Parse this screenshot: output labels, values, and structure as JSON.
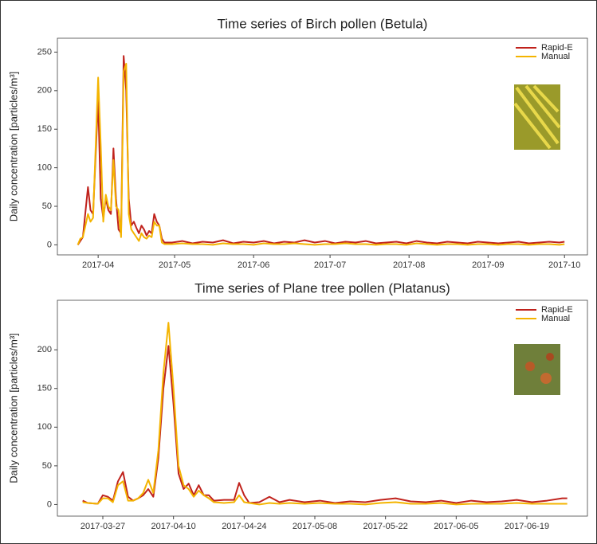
{
  "chart_data": [
    {
      "type": "line",
      "title": "Time series of Birch pollen (Betula)",
      "y_label": "Daily concentration [particles/m³]",
      "x": [
        83,
        84,
        85,
        87,
        88,
        89,
        91,
        92,
        93,
        94,
        95,
        96,
        97,
        98,
        99,
        100,
        101,
        102,
        103,
        104,
        105,
        106,
        107,
        108,
        109,
        110,
        111,
        112,
        113,
        114,
        115,
        116,
        117,
        120,
        124,
        128,
        132,
        136,
        140,
        144,
        148,
        152,
        156,
        160,
        164,
        168,
        172,
        176,
        180,
        184,
        188,
        192,
        196,
        200,
        204,
        208,
        212,
        216,
        220,
        224,
        228,
        232,
        236,
        240,
        244,
        248,
        252,
        256,
        260,
        264,
        268,
        272,
        274
      ],
      "series": [
        {
          "name": "Rapid-E",
          "color": "#c0221c",
          "values": [
            0,
            5,
            10,
            75,
            45,
            40,
            190,
            60,
            35,
            60,
            45,
            40,
            125,
            60,
            20,
            15,
            245,
            200,
            60,
            25,
            30,
            22,
            15,
            25,
            20,
            12,
            18,
            15,
            40,
            30,
            25,
            8,
            3,
            3,
            5,
            2,
            4,
            3,
            6,
            2,
            4,
            3,
            5,
            2,
            4,
            3,
            6,
            3,
            5,
            2,
            4,
            3,
            5,
            2,
            3,
            4,
            2,
            5,
            3,
            2,
            4,
            3,
            2,
            4,
            3,
            2,
            3,
            4,
            2,
            3,
            4,
            3,
            4
          ]
        },
        {
          "name": "Manual",
          "color": "#f4b400",
          "values": [
            0,
            8,
            10,
            40,
            30,
            35,
            217,
            130,
            30,
            65,
            50,
            45,
            110,
            50,
            45,
            10,
            225,
            235,
            40,
            20,
            15,
            10,
            5,
            15,
            10,
            8,
            12,
            10,
            30,
            25,
            25,
            3,
            1,
            1,
            2,
            1,
            1,
            0,
            2,
            1,
            1,
            0,
            2,
            1,
            1,
            2,
            1,
            0,
            1,
            1,
            2,
            1,
            1,
            0,
            1,
            1,
            0,
            2,
            1,
            0,
            1,
            1,
            0,
            1,
            1,
            0,
            1,
            1,
            0,
            1,
            1,
            0,
            1
          ]
        }
      ],
      "xlim": [
        75,
        283
      ],
      "xticks": [
        {
          "value": 91,
          "label": "2017-04"
        },
        {
          "value": 121,
          "label": "2017-05"
        },
        {
          "value": 152,
          "label": "2017-06"
        },
        {
          "value": 182,
          "label": "2017-07"
        },
        {
          "value": 213,
          "label": "2017-08"
        },
        {
          "value": 244,
          "label": "2017-09"
        },
        {
          "value": 274,
          "label": "2017-10"
        }
      ],
      "ylim": [
        -13,
        268
      ],
      "yticks": [
        0,
        50,
        100,
        150,
        200,
        250
      ],
      "legend": "upper right",
      "grid": false
    },
    {
      "type": "line",
      "title": "Time series of Plane tree pollen (Platanus)",
      "y_label": "Daily concentration [particles/m³]",
      "x": [
        "2017-03-23",
        "2017-03-24",
        "2017-03-26",
        "2017-03-27",
        "2017-03-28",
        "2017-03-29",
        "2017-03-30",
        "2017-03-31",
        "2017-04-01",
        "2017-04-02",
        "2017-04-03",
        "2017-04-04",
        "2017-04-05",
        "2017-04-06",
        "2017-04-07",
        "2017-04-08",
        "2017-04-09",
        "2017-04-10",
        "2017-04-11",
        "2017-04-12",
        "2017-04-13",
        "2017-04-14",
        "2017-04-15",
        "2017-04-16",
        "2017-04-17",
        "2017-04-18",
        "2017-04-20",
        "2017-04-22",
        "2017-04-23",
        "2017-04-24",
        "2017-04-25",
        "2017-04-27",
        "2017-04-29",
        "2017-05-01",
        "2017-05-03",
        "2017-05-06",
        "2017-05-09",
        "2017-05-12",
        "2017-05-15",
        "2017-05-18",
        "2017-05-21",
        "2017-05-24",
        "2017-05-27",
        "2017-05-30",
        "2017-06-02",
        "2017-06-05",
        "2017-06-08",
        "2017-06-11",
        "2017-06-14",
        "2017-06-17",
        "2017-06-20",
        "2017-06-23",
        "2017-06-26",
        "2017-06-27"
      ],
      "series": [
        {
          "name": "Rapid-E",
          "color": "#c0221c",
          "values": [
            5,
            2,
            1,
            12,
            10,
            5,
            30,
            42,
            10,
            5,
            8,
            12,
            20,
            10,
            60,
            150,
            205,
            130,
            40,
            20,
            27,
            12,
            25,
            12,
            12,
            5,
            6,
            6,
            28,
            12,
            2,
            3,
            10,
            3,
            6,
            3,
            5,
            2,
            4,
            3,
            6,
            8,
            4,
            3,
            5,
            2,
            5,
            3,
            4,
            6,
            3,
            5,
            8,
            8
          ]
        },
        {
          "name": "Manual",
          "color": "#f4b400",
          "values": [
            3,
            2,
            1,
            8,
            8,
            3,
            25,
            30,
            5,
            5,
            8,
            15,
            32,
            15,
            70,
            170,
            235,
            150,
            50,
            25,
            20,
            10,
            18,
            12,
            8,
            3,
            2,
            3,
            12,
            3,
            2,
            0,
            2,
            1,
            2,
            1,
            2,
            1,
            1,
            0,
            2,
            3,
            1,
            1,
            2,
            0,
            1,
            1,
            1,
            2,
            1,
            1,
            1,
            1
          ]
        }
      ],
      "xlim": [
        "2017-03-18",
        "2017-07-01"
      ],
      "xticks": [
        "2017-03-27",
        "2017-04-10",
        "2017-04-24",
        "2017-05-08",
        "2017-05-22",
        "2017-06-05",
        "2017-06-19"
      ],
      "ylim": [
        -15,
        264
      ],
      "yticks": [
        0,
        50,
        100,
        150,
        200
      ],
      "legend": "upper right",
      "grid": false
    }
  ]
}
